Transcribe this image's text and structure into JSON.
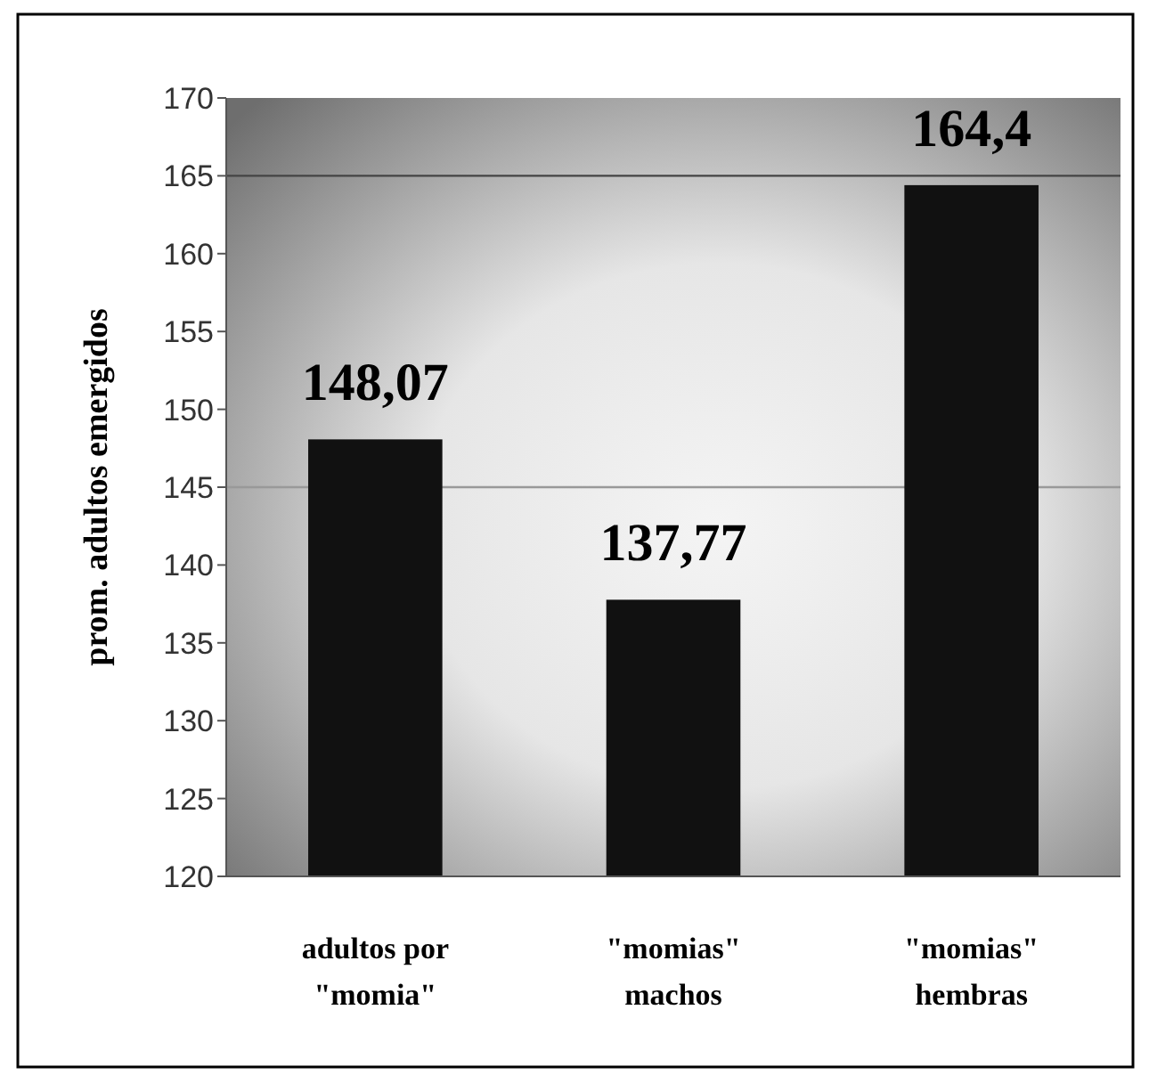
{
  "chart_data": {
    "type": "bar",
    "ylabel": "prom. adultos emergidos",
    "categories": [
      "adultos por \"momia\"",
      "\"momias\" machos",
      "\"momias\" hembras"
    ],
    "values": [
      148.07,
      137.77,
      164.4
    ],
    "color": "#111111",
    "value_labels": [
      "148,07",
      "137,77",
      "164,4"
    ],
    "ylim": [
      120,
      170
    ],
    "yticks": [
      120,
      125,
      130,
      135,
      140,
      145,
      150,
      155,
      160,
      165,
      170
    ],
    "ref_lines": [
      {
        "axis": "y",
        "value": 145,
        "color": "#999999"
      },
      {
        "axis": "y",
        "value": 165,
        "color": "#444444"
      }
    ],
    "grid": false
  }
}
